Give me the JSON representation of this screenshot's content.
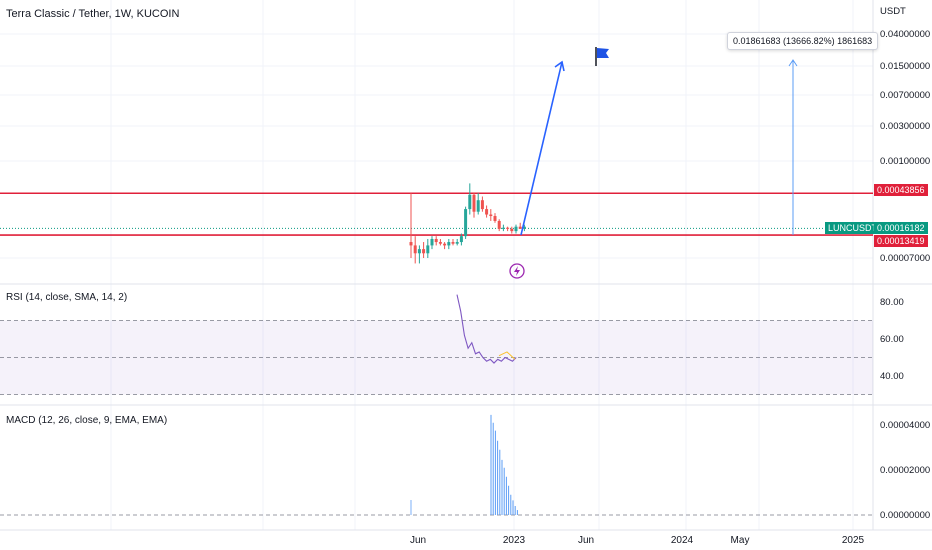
{
  "header": {
    "symbol_title": "Terra Classic / Tether, 1W, KUCOIN",
    "currency": "USDT"
  },
  "price_pane": {
    "ticks": [
      "0.04000000",
      "0.01500000",
      "0.00700000",
      "0.00300000",
      "0.00100000",
      "0.00007000"
    ],
    "resistance_tag": "0.00043856",
    "last_tag_label": "LUNCUSDT",
    "last_tag_value": "0.00016182",
    "support_tag": "0.00013419",
    "measure_tooltip": "0.01861683 (13666.82%) 1861683",
    "colors": {
      "resistance": "#e0203a",
      "up": "#26a69a",
      "down": "#ef5350",
      "arrow": "#2962ff",
      "flag": "#1e53e5",
      "tag_green": "#089981"
    }
  },
  "rsi_pane": {
    "label": "RSI (14, close, SMA, 14, 2)",
    "ticks": [
      "80.00",
      "60.00",
      "40.00"
    ],
    "line_color": "#7e57c2",
    "ma_color": "#fbc02d"
  },
  "macd_pane": {
    "label": "MACD (12, 26, close, 9, EMA, EMA)",
    "ticks": [
      "0.00004000",
      "0.00002000",
      "0.00000000"
    ],
    "hist_color": "#5b9cf6"
  },
  "time_axis": [
    "Jun",
    "2023",
    "Jun",
    "2024",
    "May",
    "2025"
  ],
  "chart_data": {
    "type": "candlestick",
    "title": "Terra Classic / Tether, 1W, KUCOIN",
    "yscale": "log",
    "ylabel": "USDT",
    "x": [
      "Jun",
      "2023",
      "Jun",
      "2024",
      "May",
      "2025"
    ],
    "horizontal_lines": [
      0.00043856,
      0.00013419
    ],
    "last_price": 0.00016182,
    "measure": {
      "change": "0.01861683",
      "percent": "13666.82%",
      "ticks": "1861683"
    },
    "candles": [
      {
        "o": 0.00011,
        "h": 0.00044,
        "l": 7e-05,
        "c": 0.0001
      },
      {
        "o": 0.0001,
        "h": 0.00013,
        "l": 6e-05,
        "c": 8e-05
      },
      {
        "o": 8e-05,
        "h": 0.0001,
        "l": 6e-05,
        "c": 9e-05
      },
      {
        "o": 9e-05,
        "h": 0.00011,
        "l": 7e-05,
        "c": 8e-05
      },
      {
        "o": 8e-05,
        "h": 0.00012,
        "l": 7e-05,
        "c": 0.0001
      },
      {
        "o": 0.0001,
        "h": 0.00013,
        "l": 9e-05,
        "c": 0.00012
      },
      {
        "o": 0.00012,
        "h": 0.00013,
        "l": 0.0001,
        "c": 0.00011
      },
      {
        "o": 0.00011,
        "h": 0.00012,
        "l": 0.0001,
        "c": 0.000105
      },
      {
        "o": 0.000105,
        "h": 0.00011,
        "l": 9e-05,
        "c": 0.0001
      },
      {
        "o": 0.0001,
        "h": 0.00012,
        "l": 9e-05,
        "c": 0.00011
      },
      {
        "o": 0.00011,
        "h": 0.00012,
        "l": 0.0001,
        "c": 0.000105
      },
      {
        "o": 0.000105,
        "h": 0.00012,
        "l": 0.0001,
        "c": 0.00011
      },
      {
        "o": 0.00011,
        "h": 0.00014,
        "l": 0.0001,
        "c": 0.00013
      },
      {
        "o": 0.00013,
        "h": 0.0003,
        "l": 0.00012,
        "c": 0.00028
      },
      {
        "o": 0.00028,
        "h": 0.00058,
        "l": 0.00024,
        "c": 0.00042
      },
      {
        "o": 0.00042,
        "h": 0.00045,
        "l": 0.00022,
        "c": 0.00026
      },
      {
        "o": 0.00026,
        "h": 0.00044,
        "l": 0.00024,
        "c": 0.00036
      },
      {
        "o": 0.00036,
        "h": 0.0004,
        "l": 0.00026,
        "c": 0.00028
      },
      {
        "o": 0.00028,
        "h": 0.00031,
        "l": 0.00022,
        "c": 0.00024
      },
      {
        "o": 0.00024,
        "h": 0.00028,
        "l": 0.0002,
        "c": 0.00023
      },
      {
        "o": 0.00023,
        "h": 0.00025,
        "l": 0.00019,
        "c": 0.0002
      },
      {
        "o": 0.0002,
        "h": 0.00021,
        "l": 0.00015,
        "c": 0.00016
      },
      {
        "o": 0.00016,
        "h": 0.00018,
        "l": 0.00015,
        "c": 0.000165
      },
      {
        "o": 0.000165,
        "h": 0.00017,
        "l": 0.00015,
        "c": 0.00016
      },
      {
        "o": 0.00016,
        "h": 0.00017,
        "l": 0.00014,
        "c": 0.00015
      },
      {
        "o": 0.00015,
        "h": 0.00018,
        "l": 0.00014,
        "c": 0.00017
      },
      {
        "o": 0.00017,
        "h": 0.00019,
        "l": 0.00016,
        "c": 0.00016
      },
      {
        "o": 0.00016,
        "h": 0.00018,
        "l": 0.00015,
        "c": 0.00017
      }
    ],
    "rsi": [
      84,
      75,
      62,
      55,
      58,
      52,
      53,
      50,
      48,
      49,
      47,
      49,
      48,
      50,
      49,
      48,
      50
    ],
    "rsi_ma": [
      51,
      52,
      53,
      51,
      49
    ],
    "macd_hist": [
      4.45e-05,
      4.1e-05,
      3.75e-05,
      3.3e-05,
      2.9e-05,
      2.45e-05,
      2.1e-05,
      1.7e-05,
      1.3e-05,
      9e-06,
      6.5e-06,
      4e-06,
      2.2e-06
    ]
  }
}
